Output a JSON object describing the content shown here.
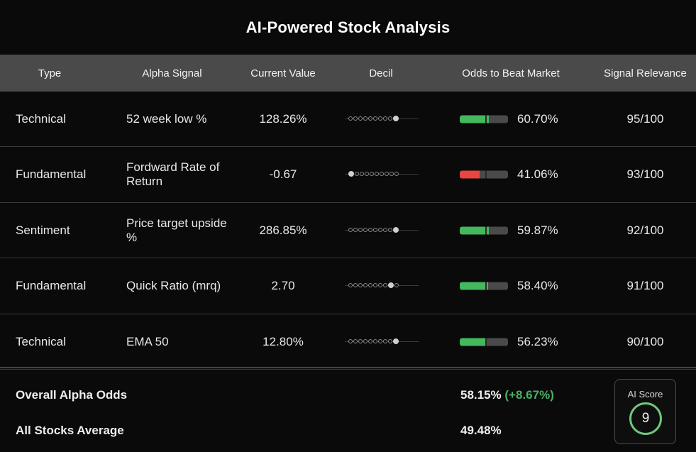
{
  "title": "AI-Powered Stock Analysis",
  "headers": [
    "Type",
    "Alpha Signal",
    "Current Value",
    "Decil",
    "Odds to Beat Market",
    "Signal Relevance"
  ],
  "colors": {
    "green": "#44b85c",
    "red": "#e8463e",
    "bar_bg": "#4a4a4a",
    "delta": "#4caf62",
    "ring": "#6fc77a"
  },
  "rows": [
    {
      "type": "Technical",
      "alpha": "52 week low %",
      "current": "128.26%",
      "decile": 10,
      "odds": "60.70%",
      "odds_value": 60.7,
      "bar_color": "green",
      "relevance": "95/100"
    },
    {
      "type": "Fundamental",
      "alpha": "Fordward Rate of Return",
      "current": "-0.67",
      "decile": 1,
      "odds": "41.06%",
      "odds_value": 41.06,
      "bar_color": "red",
      "relevance": "93/100"
    },
    {
      "type": "Sentiment",
      "alpha": "Price target upside %",
      "current": "286.85%",
      "decile": 10,
      "odds": "59.87%",
      "odds_value": 59.87,
      "bar_color": "green",
      "relevance": "92/100"
    },
    {
      "type": "Fundamental",
      "alpha": "Quick Ratio (mrq)",
      "current": "2.70",
      "decile": 9,
      "odds": "58.40%",
      "odds_value": 58.4,
      "bar_color": "green",
      "relevance": "91/100"
    },
    {
      "type": "Technical",
      "alpha": "EMA 50",
      "current": "12.80%",
      "decile": 10,
      "odds": "56.23%",
      "odds_value": 56.23,
      "bar_color": "green",
      "relevance": "90/100"
    }
  ],
  "summary": {
    "overall_label": "Overall Alpha Odds",
    "overall_value": "58.15%",
    "overall_delta": "(+8.67%)",
    "average_label": "All Stocks Average",
    "average_value": "49.48%"
  },
  "ai_score": {
    "label": "AI Score",
    "value": "9"
  }
}
